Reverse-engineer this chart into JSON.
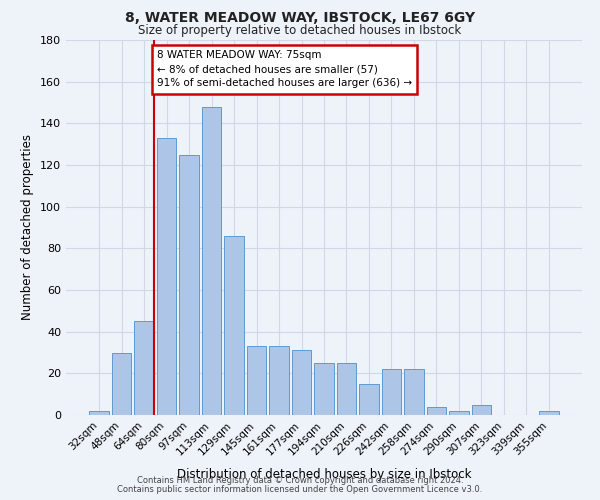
{
  "title1": "8, WATER MEADOW WAY, IBSTOCK, LE67 6GY",
  "title2": "Size of property relative to detached houses in Ibstock",
  "xlabel": "Distribution of detached houses by size in Ibstock",
  "ylabel": "Number of detached properties",
  "categories": [
    "32sqm",
    "48sqm",
    "64sqm",
    "80sqm",
    "97sqm",
    "113sqm",
    "129sqm",
    "145sqm",
    "161sqm",
    "177sqm",
    "194sqm",
    "210sqm",
    "226sqm",
    "242sqm",
    "258sqm",
    "274sqm",
    "290sqm",
    "307sqm",
    "323sqm",
    "339sqm",
    "355sqm"
  ],
  "values": [
    2,
    30,
    45,
    133,
    125,
    148,
    86,
    33,
    33,
    31,
    25,
    25,
    15,
    22,
    22,
    4,
    2,
    5,
    0,
    0,
    2
  ],
  "bar_color": "#adc6e8",
  "bar_edge_color": "#5b9bd5",
  "annotation_line1": "8 WATER MEADOW WAY: 75sqm",
  "annotation_line2": "← 8% of detached houses are smaller (57)",
  "annotation_line3": "91% of semi-detached houses are larger (636) →",
  "vline_color": "#cc0000",
  "annotation_box_color": "#cc0000",
  "ylim": [
    0,
    180
  ],
  "yticks": [
    0,
    20,
    40,
    60,
    80,
    100,
    120,
    140,
    160,
    180
  ],
  "footer1": "Contains HM Land Registry data © Crown copyright and database right 2024.",
  "footer2": "Contains public sector information licensed under the Open Government Licence v3.0.",
  "background_color": "#eef2f9",
  "plot_bg_color": "#eef2f9",
  "grid_color": "#d0d8e8"
}
